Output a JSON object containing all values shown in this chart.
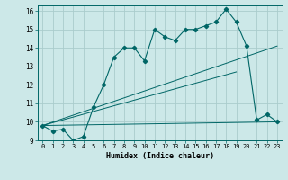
{
  "xlabel": "Humidex (Indice chaleur)",
  "bg_color": "#cce8e8",
  "grid_color": "#aacccc",
  "line_color": "#006666",
  "xlim": [
    -0.5,
    23.5
  ],
  "ylim": [
    9,
    16.3
  ],
  "xticks": [
    0,
    1,
    2,
    3,
    4,
    5,
    6,
    7,
    8,
    9,
    10,
    11,
    12,
    13,
    14,
    15,
    16,
    17,
    18,
    19,
    20,
    21,
    22,
    23
  ],
  "yticks": [
    9,
    10,
    11,
    12,
    13,
    14,
    15,
    16
  ],
  "series1_x": [
    0,
    1,
    2,
    3,
    4,
    5,
    6,
    7,
    8,
    9,
    10,
    11,
    12,
    13,
    14,
    15,
    16,
    17,
    18,
    19,
    20,
    21,
    22,
    23
  ],
  "series1_y": [
    9.8,
    9.5,
    9.6,
    9.0,
    9.2,
    10.8,
    12.0,
    13.5,
    14.0,
    14.0,
    13.3,
    15.0,
    14.6,
    14.4,
    15.0,
    15.0,
    15.2,
    15.4,
    16.1,
    15.4,
    14.1,
    10.1,
    10.4,
    10.0
  ],
  "series2_x": [
    0,
    23
  ],
  "series2_y": [
    9.8,
    14.1
  ],
  "series3_x": [
    0,
    19
  ],
  "series3_y": [
    9.8,
    12.7
  ],
  "series4_x": [
    0,
    23
  ],
  "series4_y": [
    9.8,
    10.0
  ]
}
